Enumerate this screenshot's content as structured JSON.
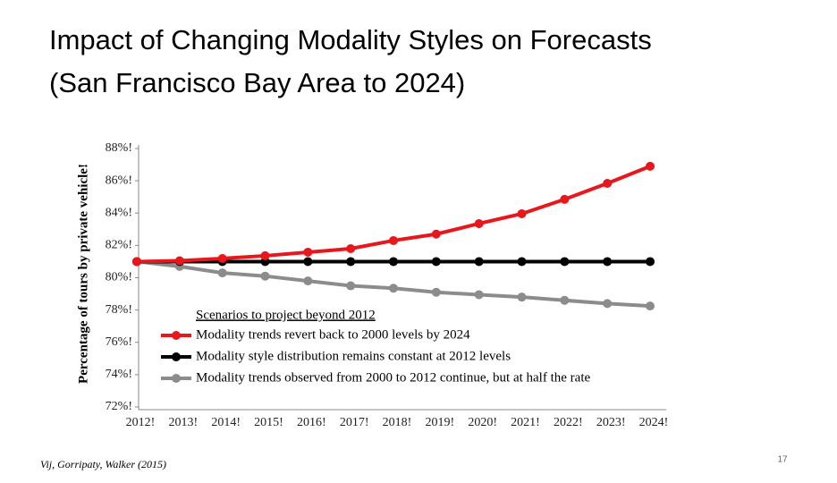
{
  "header": {
    "title": "Impact of Changing Modality Styles on Forecasts",
    "subtitle": "(San Francisco Bay Area to 2024)"
  },
  "chart_data": {
    "type": "line",
    "ylabel": "Percentage of tours by private vehicle!",
    "legend_title": "Scenarios to project beyond 2012",
    "categories": [
      "2012!",
      "2013!",
      "2014!",
      "2015!",
      "2016!",
      "2017!",
      "2018!",
      "2019!",
      "2020!",
      "2021!",
      "2022!",
      "2023!",
      "2024!"
    ],
    "series": [
      {
        "name": "Modality trends revert back to 2000 levels by 2024",
        "color": "#e8171b",
        "values": [
          81.0,
          81.05,
          81.19,
          81.36,
          81.58,
          81.8,
          82.3,
          82.7,
          83.35,
          83.96,
          84.85,
          85.84,
          86.9
        ]
      },
      {
        "name": "Modality style distribution remains constant at 2012 levels",
        "color": "#000000",
        "values": [
          81.0,
          81.0,
          81.0,
          81.0,
          81.0,
          81.0,
          81.0,
          81.0,
          81.0,
          81.0,
          81.0,
          81.0,
          81.0
        ]
      },
      {
        "name": "Modality trends observed from 2000 to 2012 continue, but at half the rate",
        "color": "#8c8c8c",
        "values": [
          81.0,
          80.7,
          80.3,
          80.1,
          79.8,
          79.5,
          79.35,
          79.1,
          78.95,
          78.8,
          78.6,
          78.4,
          78.25
        ]
      }
    ],
    "ylim": [
      72,
      88
    ],
    "yticks": [
      {
        "value": 72,
        "label": "72%!"
      },
      {
        "value": 74,
        "label": "74%!"
      },
      {
        "value": 76,
        "label": "76%!"
      },
      {
        "value": 78,
        "label": "78%!"
      },
      {
        "value": 80,
        "label": "80%!"
      },
      {
        "value": 82,
        "label": "82%!"
      },
      {
        "value": 84,
        "label": "84%!"
      },
      {
        "value": 86,
        "label": "86%!"
      },
      {
        "value": 88,
        "label": "88%!"
      }
    ],
    "grid": false
  },
  "footer": {
    "citation": "Vij, Gorripaty, Walker (2015)",
    "page_number": "17"
  }
}
